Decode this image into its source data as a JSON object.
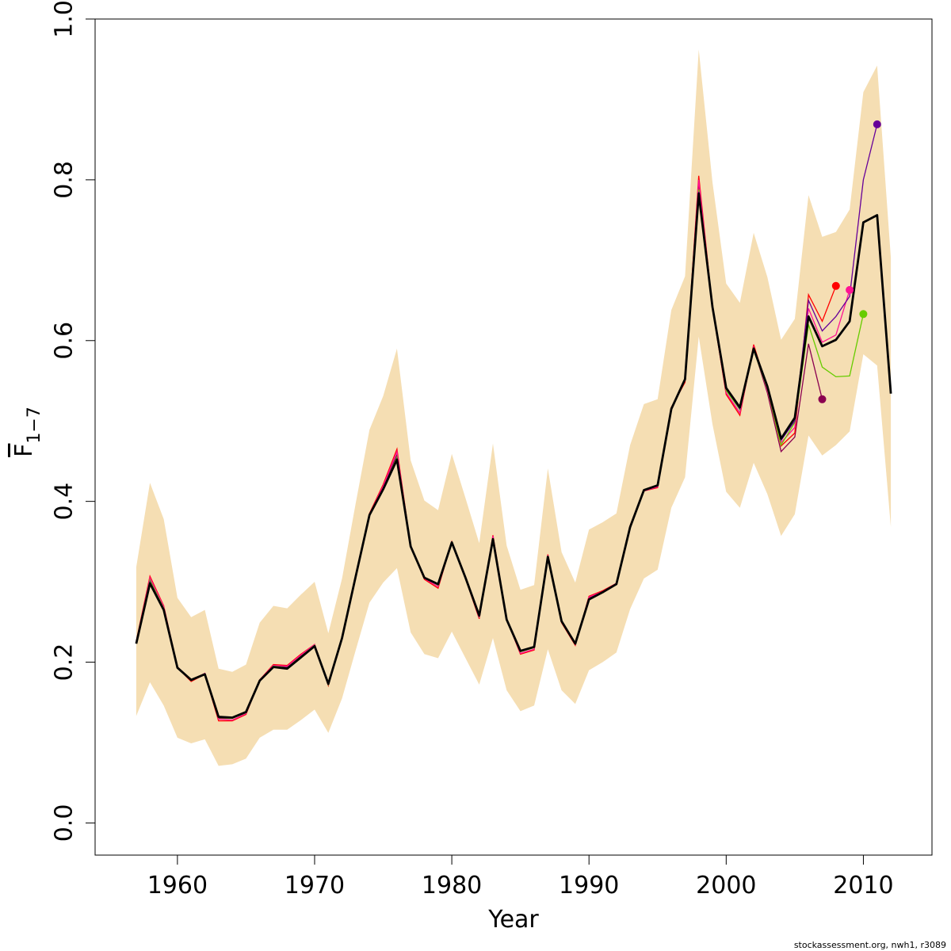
{
  "chart_data": {
    "type": "line",
    "xlabel": "Year",
    "ylabel_main": "F",
    "ylabel_sub": "1−7",
    "xlim": [
      1954,
      2015
    ],
    "ylim": [
      -0.04,
      1.0
    ],
    "x_ticks": [
      1960,
      1970,
      1980,
      1990,
      2000,
      2010
    ],
    "y_ticks": [
      0.0,
      0.2,
      0.4,
      0.6,
      0.8,
      1.0
    ],
    "y_tick_labels": [
      "0.0",
      "0.2",
      "0.4",
      "0.6",
      "0.8",
      "1.0"
    ],
    "grid": false,
    "band_color": "#F5DEB3",
    "footnote": "stockassessment.org, nwh1, r3089",
    "x": [
      1957,
      1958,
      1959,
      1960,
      1961,
      1962,
      1963,
      1964,
      1965,
      1966,
      1967,
      1968,
      1969,
      1970,
      1971,
      1972,
      1973,
      1974,
      1975,
      1976,
      1977,
      1978,
      1979,
      1980,
      1981,
      1982,
      1983,
      1984,
      1985,
      1986,
      1987,
      1988,
      1989,
      1990,
      1991,
      1992,
      1993,
      1994,
      1995,
      1996,
      1997,
      1998,
      1999,
      2000,
      2001,
      2002,
      2003,
      2004,
      2005,
      2006,
      2007,
      2008,
      2009,
      2010,
      2011,
      2012
    ],
    "main": [
      0.223,
      0.298,
      0.265,
      0.193,
      0.178,
      0.185,
      0.132,
      0.131,
      0.138,
      0.177,
      0.194,
      0.192,
      0.206,
      0.22,
      0.173,
      0.23,
      0.307,
      0.383,
      0.415,
      0.452,
      0.344,
      0.305,
      0.297,
      0.349,
      0.305,
      0.258,
      0.353,
      0.253,
      0.214,
      0.219,
      0.331,
      0.251,
      0.223,
      0.278,
      0.287,
      0.297,
      0.368,
      0.414,
      0.42,
      0.515,
      0.552,
      0.783,
      0.642,
      0.541,
      0.517,
      0.59,
      0.543,
      0.478,
      0.504,
      0.63,
      0.593,
      0.601,
      0.624,
      0.747,
      0.756,
      0.534
    ],
    "band_upper": [
      0.318,
      0.423,
      0.378,
      0.28,
      0.256,
      0.265,
      0.192,
      0.188,
      0.197,
      0.249,
      0.27,
      0.267,
      0.284,
      0.3,
      0.236,
      0.304,
      0.398,
      0.489,
      0.531,
      0.59,
      0.451,
      0.401,
      0.389,
      0.459,
      0.404,
      0.348,
      0.472,
      0.345,
      0.29,
      0.296,
      0.441,
      0.337,
      0.299,
      0.365,
      0.374,
      0.385,
      0.47,
      0.521,
      0.527,
      0.638,
      0.68,
      0.962,
      0.797,
      0.671,
      0.647,
      0.734,
      0.679,
      0.601,
      0.627,
      0.781,
      0.729,
      0.735,
      0.763,
      0.909,
      0.942,
      0.703
    ],
    "band_lower": [
      0.133,
      0.175,
      0.146,
      0.106,
      0.099,
      0.104,
      0.071,
      0.073,
      0.08,
      0.106,
      0.116,
      0.116,
      0.128,
      0.141,
      0.112,
      0.155,
      0.215,
      0.274,
      0.299,
      0.317,
      0.237,
      0.21,
      0.205,
      0.238,
      0.205,
      0.172,
      0.23,
      0.165,
      0.139,
      0.146,
      0.216,
      0.165,
      0.148,
      0.19,
      0.2,
      0.212,
      0.266,
      0.304,
      0.315,
      0.392,
      0.43,
      0.605,
      0.496,
      0.412,
      0.392,
      0.448,
      0.409,
      0.357,
      0.384,
      0.482,
      0.457,
      0.47,
      0.487,
      0.583,
      0.569,
      0.368
    ],
    "series": [
      {
        "color": "#8B0050",
        "x": [
          1957,
          1958,
          1959,
          1960,
          1961,
          1962,
          1963,
          1964,
          1965,
          1966,
          1967,
          1968,
          1969,
          1970,
          1971,
          1972,
          1973,
          1974,
          1975,
          1976,
          1977,
          1978,
          1979,
          1980,
          1981,
          1982,
          1983,
          1984,
          1985,
          1986,
          1987,
          1988,
          1989,
          1990,
          1991,
          1992,
          1993,
          1994,
          1995,
          1996,
          1997,
          1998,
          1999,
          2000,
          2001,
          2002,
          2003,
          2004,
          2005,
          2006,
          2007
        ],
        "values": [
          0.224,
          0.304,
          0.268,
          0.194,
          0.178,
          0.186,
          0.13,
          0.13,
          0.137,
          0.177,
          0.196,
          0.194,
          0.208,
          0.221,
          0.172,
          0.23,
          0.307,
          0.384,
          0.418,
          0.458,
          0.344,
          0.305,
          0.296,
          0.349,
          0.305,
          0.257,
          0.356,
          0.253,
          0.213,
          0.218,
          0.332,
          0.25,
          0.222,
          0.28,
          0.288,
          0.298,
          0.368,
          0.414,
          0.419,
          0.516,
          0.551,
          0.795,
          0.64,
          0.535,
          0.51,
          0.59,
          0.535,
          0.462,
          0.48,
          0.596,
          0.527
        ],
        "terminal": true
      },
      {
        "color": "#FF0000",
        "x": [
          1957,
          1958,
          1959,
          1960,
          1961,
          1962,
          1963,
          1964,
          1965,
          1966,
          1967,
          1968,
          1969,
          1970,
          1971,
          1972,
          1973,
          1974,
          1975,
          1976,
          1977,
          1978,
          1979,
          1980,
          1981,
          1982,
          1983,
          1984,
          1985,
          1986,
          1987,
          1988,
          1989,
          1990,
          1991,
          1992,
          1993,
          1994,
          1995,
          1996,
          1997,
          1998,
          1999,
          2000,
          2001,
          2002,
          2003,
          2004,
          2005,
          2006,
          2007,
          2008
        ],
        "values": [
          0.226,
          0.307,
          0.27,
          0.193,
          0.176,
          0.185,
          0.127,
          0.127,
          0.135,
          0.178,
          0.197,
          0.196,
          0.21,
          0.222,
          0.171,
          0.231,
          0.307,
          0.385,
          0.421,
          0.465,
          0.344,
          0.303,
          0.292,
          0.35,
          0.304,
          0.254,
          0.358,
          0.254,
          0.21,
          0.215,
          0.334,
          0.249,
          0.221,
          0.282,
          0.289,
          0.298,
          0.37,
          0.413,
          0.417,
          0.517,
          0.548,
          0.805,
          0.641,
          0.533,
          0.507,
          0.595,
          0.54,
          0.469,
          0.485,
          0.657,
          0.624,
          0.668
        ],
        "terminal": true
      },
      {
        "color": "#FF1493",
        "x": [
          1957,
          1958,
          1959,
          1960,
          1961,
          1962,
          1963,
          1964,
          1965,
          1966,
          1967,
          1968,
          1969,
          1970,
          1971,
          1972,
          1973,
          1974,
          1975,
          1976,
          1977,
          1978,
          1979,
          1980,
          1981,
          1982,
          1983,
          1984,
          1985,
          1986,
          1987,
          1988,
          1989,
          1990,
          1991,
          1992,
          1993,
          1994,
          1995,
          1996,
          1997,
          1998,
          1999,
          2000,
          2001,
          2002,
          2003,
          2004,
          2005,
          2006,
          2007,
          2008,
          2009
        ],
        "values": [
          0.225,
          0.305,
          0.269,
          0.194,
          0.177,
          0.186,
          0.129,
          0.128,
          0.136,
          0.178,
          0.196,
          0.195,
          0.209,
          0.222,
          0.172,
          0.231,
          0.307,
          0.384,
          0.419,
          0.462,
          0.344,
          0.304,
          0.294,
          0.349,
          0.305,
          0.255,
          0.357,
          0.253,
          0.211,
          0.216,
          0.333,
          0.25,
          0.222,
          0.281,
          0.288,
          0.298,
          0.369,
          0.413,
          0.418,
          0.516,
          0.55,
          0.8,
          0.641,
          0.535,
          0.51,
          0.592,
          0.538,
          0.473,
          0.492,
          0.64,
          0.598,
          0.607,
          0.663
        ],
        "terminal": true
      },
      {
        "color": "#66CC00",
        "x": [
          1957,
          1958,
          1959,
          1960,
          1961,
          1962,
          1963,
          1964,
          1965,
          1966,
          1967,
          1968,
          1969,
          1970,
          1971,
          1972,
          1973,
          1974,
          1975,
          1976,
          1977,
          1978,
          1979,
          1980,
          1981,
          1982,
          1983,
          1984,
          1985,
          1986,
          1987,
          1988,
          1989,
          1990,
          1991,
          1992,
          1993,
          1994,
          1995,
          1996,
          1997,
          1998,
          1999,
          2000,
          2001,
          2002,
          2003,
          2004,
          2005,
          2006,
          2007,
          2008,
          2009,
          2010
        ],
        "values": [
          0.224,
          0.302,
          0.267,
          0.193,
          0.177,
          0.185,
          0.131,
          0.13,
          0.137,
          0.177,
          0.195,
          0.193,
          0.207,
          0.221,
          0.172,
          0.23,
          0.307,
          0.383,
          0.416,
          0.455,
          0.344,
          0.305,
          0.296,
          0.349,
          0.305,
          0.257,
          0.354,
          0.253,
          0.213,
          0.218,
          0.331,
          0.251,
          0.223,
          0.279,
          0.287,
          0.297,
          0.368,
          0.414,
          0.42,
          0.515,
          0.551,
          0.788,
          0.641,
          0.538,
          0.514,
          0.588,
          0.54,
          0.47,
          0.498,
          0.62,
          0.567,
          0.555,
          0.556,
          0.633
        ],
        "terminal": true
      },
      {
        "color": "#660099",
        "x": [
          1957,
          1958,
          1959,
          1960,
          1961,
          1962,
          1963,
          1964,
          1965,
          1966,
          1967,
          1968,
          1969,
          1970,
          1971,
          1972,
          1973,
          1974,
          1975,
          1976,
          1977,
          1978,
          1979,
          1980,
          1981,
          1982,
          1983,
          1984,
          1985,
          1986,
          1987,
          1988,
          1989,
          1990,
          1991,
          1992,
          1993,
          1994,
          1995,
          1996,
          1997,
          1998,
          1999,
          2000,
          2001,
          2002,
          2003,
          2004,
          2005,
          2006,
          2007,
          2008,
          2009,
          2010,
          2011
        ],
        "values": [
          0.224,
          0.3,
          0.266,
          0.193,
          0.178,
          0.185,
          0.132,
          0.131,
          0.138,
          0.177,
          0.194,
          0.193,
          0.206,
          0.22,
          0.173,
          0.23,
          0.307,
          0.383,
          0.415,
          0.453,
          0.344,
          0.305,
          0.297,
          0.349,
          0.305,
          0.258,
          0.353,
          0.253,
          0.214,
          0.219,
          0.331,
          0.251,
          0.223,
          0.278,
          0.287,
          0.297,
          0.368,
          0.414,
          0.42,
          0.515,
          0.552,
          0.785,
          0.642,
          0.54,
          0.515,
          0.59,
          0.542,
          0.476,
          0.5,
          0.65,
          0.612,
          0.63,
          0.655,
          0.8,
          0.869
        ],
        "terminal": true
      }
    ]
  }
}
